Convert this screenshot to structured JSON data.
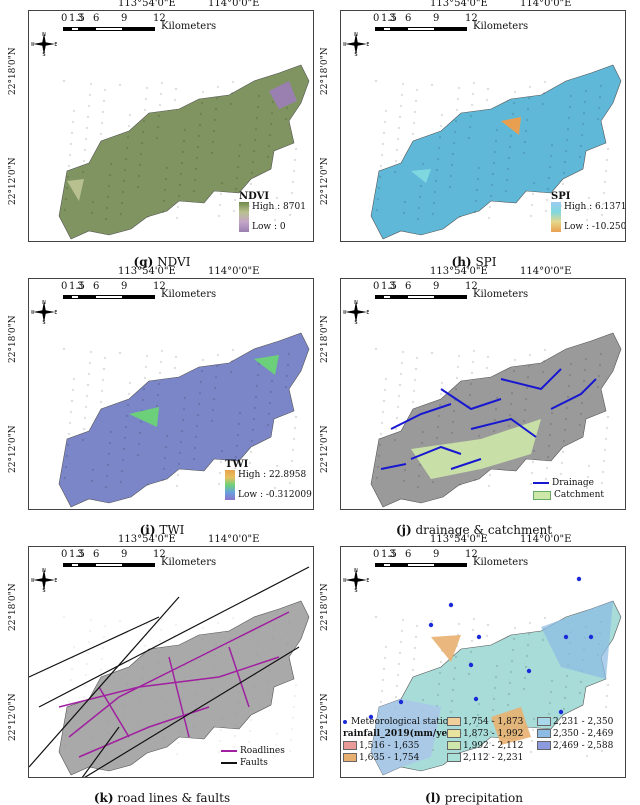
{
  "common": {
    "lon_labels": [
      "113°54'0\"E",
      "114°0'0\"E"
    ],
    "lat_labels": [
      "22°18'0\"N",
      "22°12'0\"N"
    ],
    "scale_ticks": [
      "0",
      "1.5",
      "3",
      "6",
      "9",
      "12"
    ],
    "scale_unit": "Kilometers",
    "compass": {
      "n": "N",
      "s": "S",
      "e": "E",
      "w": "W"
    }
  },
  "panels": [
    {
      "caption_letter": "(g)",
      "caption_text": "NDVI",
      "legend": {
        "title": "NDVI",
        "high": "High : 8701",
        "low": "Low : 0"
      },
      "colors": {
        "fill": "#7f9460",
        "ramp": [
          "#6e8a4a",
          "#b9c08f",
          "#c4a4c8",
          "#9a80b0"
        ]
      }
    },
    {
      "caption_letter": "(h)",
      "caption_text": "SPI",
      "legend": {
        "title": "SPI",
        "high": "High : 6.13719",
        "low": "Low : -10.2501"
      },
      "colors": {
        "fill": "#5fb8d8",
        "ramp": [
          "#9ec9f0",
          "#7fd8e0",
          "#e7d78a",
          "#e8a050"
        ]
      }
    },
    {
      "caption_letter": "(i)",
      "caption_text": "TWI",
      "legend": {
        "title": "TWI",
        "high": "High : 22.8958",
        "low": "Low : -0.312009"
      },
      "colors": {
        "fill": "#7b86c8",
        "ramp": [
          "#e7a24c",
          "#e8c060",
          "#6cd07a",
          "#6aa0e0",
          "#8a74c8"
        ]
      }
    },
    {
      "caption_letter": "(j)",
      "caption_text": "drainage & catchment",
      "legend": {
        "drainage": "Drainage",
        "catchment": "Catchment"
      },
      "colors": {
        "fill": "#9a9a9a",
        "drainage": "#1818d0",
        "catchment": "#cde8a8"
      }
    },
    {
      "caption_letter": "(k)",
      "caption_text": "road lines & faults",
      "legend": {
        "roads": "Roadlines",
        "faults": "Faults"
      },
      "colors": {
        "fill": "#a9a9a9",
        "roads": "#a020a0",
        "faults": "#111111"
      }
    },
    {
      "caption_letter": "(l)",
      "caption_text": "precipitation",
      "legend": {
        "stations": "Meteorological stations",
        "title": "rainfall_2019(mm/year)",
        "classes": [
          {
            "label": "1,516 - 1,635",
            "color": "#e79a98"
          },
          {
            "label": "1,635 - 1,754",
            "color": "#e8b070"
          },
          {
            "label": "1,754 - 1,873",
            "color": "#f0cf9a"
          },
          {
            "label": "1,873 - 1,992",
            "color": "#e9e3a0"
          },
          {
            "label": "1,992 - 2,112",
            "color": "#cfe7ad"
          },
          {
            "label": "2,112 - 2,231",
            "color": "#a9e0d8"
          },
          {
            "label": "2,231 - 2,350",
            "color": "#a9d8ea"
          },
          {
            "label": "2,350 - 2,469",
            "color": "#8cbbe4"
          },
          {
            "label": "2,469 - 2,588",
            "color": "#8c9ae0"
          }
        ]
      },
      "colors": {
        "fill": "#a8dcd8",
        "stations": "#1a2ad8"
      }
    }
  ]
}
